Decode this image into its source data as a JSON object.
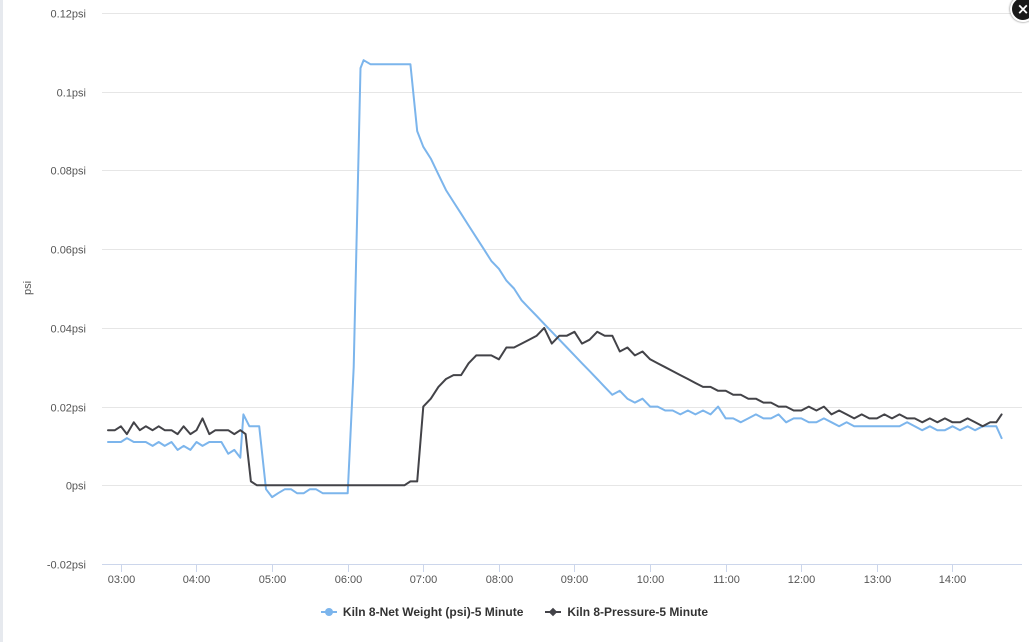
{
  "window": {
    "close_label": "×"
  },
  "colors": {
    "net_weight": "#7cb5ec",
    "pressure": "#434348",
    "grid": "#e6e6e6",
    "axis_line": "#ccd6eb"
  },
  "chart_data": {
    "type": "line",
    "title": "",
    "xlabel": "",
    "ylabel": "psi",
    "ylim": [
      -0.02,
      0.12
    ],
    "y_ticks": [
      "-0.02psi",
      "0psi",
      "0.02psi",
      "0.04psi",
      "0.06psi",
      "0.08psi",
      "0.1psi",
      "0.12psi"
    ],
    "y_tick_values": [
      -0.02,
      0,
      0.02,
      0.04,
      0.06,
      0.08,
      0.1,
      0.12
    ],
    "x_ticks": [
      "03:00",
      "04:00",
      "05:00",
      "06:00",
      "07:00",
      "08:00",
      "09:00",
      "10:00",
      "11:00",
      "12:00",
      "13:00",
      "14:00"
    ],
    "x_tick_hours": [
      3,
      4,
      5,
      6,
      7,
      8,
      9,
      10,
      11,
      12,
      13,
      14
    ],
    "xlim_hours": [
      2.75,
      14.92
    ],
    "legend_position": "bottom-center",
    "grid": true,
    "series": [
      {
        "name": "Kiln 8-Net Weight (psi)-5 Minute",
        "color": "#7cb5ec",
        "marker": "circle",
        "points": [
          [
            2.83,
            0.011
          ],
          [
            2.92,
            0.011
          ],
          [
            3.0,
            0.011
          ],
          [
            3.08,
            0.012
          ],
          [
            3.17,
            0.011
          ],
          [
            3.25,
            0.011
          ],
          [
            3.33,
            0.011
          ],
          [
            3.42,
            0.01
          ],
          [
            3.5,
            0.011
          ],
          [
            3.58,
            0.01
          ],
          [
            3.67,
            0.011
          ],
          [
            3.75,
            0.009
          ],
          [
            3.83,
            0.01
          ],
          [
            3.92,
            0.009
          ],
          [
            4.0,
            0.011
          ],
          [
            4.08,
            0.01
          ],
          [
            4.17,
            0.011
          ],
          [
            4.25,
            0.011
          ],
          [
            4.33,
            0.011
          ],
          [
            4.42,
            0.008
          ],
          [
            4.5,
            0.009
          ],
          [
            4.58,
            0.007
          ],
          [
            4.62,
            0.018
          ],
          [
            4.7,
            0.015
          ],
          [
            4.83,
            0.015
          ],
          [
            4.92,
            -0.001
          ],
          [
            5.0,
            -0.003
          ],
          [
            5.08,
            -0.002
          ],
          [
            5.17,
            -0.001
          ],
          [
            5.25,
            -0.001
          ],
          [
            5.33,
            -0.002
          ],
          [
            5.42,
            -0.002
          ],
          [
            5.5,
            -0.001
          ],
          [
            5.58,
            -0.001
          ],
          [
            5.67,
            -0.002
          ],
          [
            5.75,
            -0.002
          ],
          [
            5.83,
            -0.002
          ],
          [
            5.92,
            -0.002
          ],
          [
            6.0,
            -0.002
          ],
          [
            6.08,
            0.03
          ],
          [
            6.17,
            0.106
          ],
          [
            6.21,
            0.108
          ],
          [
            6.3,
            0.107
          ],
          [
            6.5,
            0.107
          ],
          [
            6.7,
            0.107
          ],
          [
            6.83,
            0.107
          ],
          [
            6.92,
            0.09
          ],
          [
            7.0,
            0.086
          ],
          [
            7.1,
            0.083
          ],
          [
            7.2,
            0.079
          ],
          [
            7.3,
            0.075
          ],
          [
            7.4,
            0.072
          ],
          [
            7.5,
            0.069
          ],
          [
            7.6,
            0.066
          ],
          [
            7.7,
            0.063
          ],
          [
            7.8,
            0.06
          ],
          [
            7.9,
            0.057
          ],
          [
            8.0,
            0.055
          ],
          [
            8.1,
            0.052
          ],
          [
            8.2,
            0.05
          ],
          [
            8.3,
            0.047
          ],
          [
            8.4,
            0.045
          ],
          [
            8.5,
            0.043
          ],
          [
            8.6,
            0.041
          ],
          [
            8.7,
            0.039
          ],
          [
            8.8,
            0.037
          ],
          [
            8.9,
            0.035
          ],
          [
            9.0,
            0.033
          ],
          [
            9.1,
            0.031
          ],
          [
            9.2,
            0.029
          ],
          [
            9.3,
            0.027
          ],
          [
            9.4,
            0.025
          ],
          [
            9.5,
            0.023
          ],
          [
            9.6,
            0.024
          ],
          [
            9.7,
            0.022
          ],
          [
            9.8,
            0.021
          ],
          [
            9.9,
            0.022
          ],
          [
            10.0,
            0.02
          ],
          [
            10.1,
            0.02
          ],
          [
            10.2,
            0.019
          ],
          [
            10.3,
            0.019
          ],
          [
            10.4,
            0.018
          ],
          [
            10.5,
            0.019
          ],
          [
            10.6,
            0.018
          ],
          [
            10.7,
            0.019
          ],
          [
            10.8,
            0.018
          ],
          [
            10.9,
            0.02
          ],
          [
            11.0,
            0.017
          ],
          [
            11.1,
            0.017
          ],
          [
            11.2,
            0.016
          ],
          [
            11.3,
            0.017
          ],
          [
            11.4,
            0.018
          ],
          [
            11.5,
            0.017
          ],
          [
            11.6,
            0.017
          ],
          [
            11.7,
            0.018
          ],
          [
            11.8,
            0.016
          ],
          [
            11.9,
            0.017
          ],
          [
            12.0,
            0.017
          ],
          [
            12.1,
            0.016
          ],
          [
            12.2,
            0.016
          ],
          [
            12.3,
            0.017
          ],
          [
            12.4,
            0.016
          ],
          [
            12.5,
            0.015
          ],
          [
            12.6,
            0.016
          ],
          [
            12.7,
            0.015
          ],
          [
            12.8,
            0.015
          ],
          [
            12.9,
            0.015
          ],
          [
            13.0,
            0.015
          ],
          [
            13.1,
            0.015
          ],
          [
            13.2,
            0.015
          ],
          [
            13.3,
            0.015
          ],
          [
            13.4,
            0.016
          ],
          [
            13.5,
            0.015
          ],
          [
            13.6,
            0.014
          ],
          [
            13.7,
            0.015
          ],
          [
            13.8,
            0.014
          ],
          [
            13.9,
            0.014
          ],
          [
            14.0,
            0.015
          ],
          [
            14.1,
            0.014
          ],
          [
            14.2,
            0.015
          ],
          [
            14.3,
            0.014
          ],
          [
            14.4,
            0.015
          ],
          [
            14.5,
            0.015
          ],
          [
            14.58,
            0.015
          ],
          [
            14.65,
            0.012
          ]
        ]
      },
      {
        "name": "Kiln 8-Pressure-5 Minute",
        "color": "#434348",
        "marker": "diamond",
        "points": [
          [
            2.83,
            0.014
          ],
          [
            2.92,
            0.014
          ],
          [
            3.0,
            0.015
          ],
          [
            3.08,
            0.013
          ],
          [
            3.17,
            0.016
          ],
          [
            3.25,
            0.014
          ],
          [
            3.33,
            0.015
          ],
          [
            3.42,
            0.014
          ],
          [
            3.5,
            0.015
          ],
          [
            3.58,
            0.014
          ],
          [
            3.67,
            0.014
          ],
          [
            3.75,
            0.013
          ],
          [
            3.83,
            0.015
          ],
          [
            3.92,
            0.013
          ],
          [
            4.0,
            0.014
          ],
          [
            4.08,
            0.017
          ],
          [
            4.17,
            0.013
          ],
          [
            4.25,
            0.014
          ],
          [
            4.33,
            0.014
          ],
          [
            4.42,
            0.014
          ],
          [
            4.5,
            0.013
          ],
          [
            4.58,
            0.014
          ],
          [
            4.65,
            0.013
          ],
          [
            4.72,
            0.001
          ],
          [
            4.8,
            0.0
          ],
          [
            5.0,
            0.0
          ],
          [
            5.5,
            0.0
          ],
          [
            6.0,
            0.0
          ],
          [
            6.5,
            0.0
          ],
          [
            6.75,
            0.0
          ],
          [
            6.83,
            0.001
          ],
          [
            6.92,
            0.001
          ],
          [
            7.0,
            0.02
          ],
          [
            7.1,
            0.022
          ],
          [
            7.2,
            0.025
          ],
          [
            7.3,
            0.027
          ],
          [
            7.4,
            0.028
          ],
          [
            7.5,
            0.028
          ],
          [
            7.6,
            0.031
          ],
          [
            7.7,
            0.033
          ],
          [
            7.8,
            0.033
          ],
          [
            7.9,
            0.033
          ],
          [
            8.0,
            0.032
          ],
          [
            8.1,
            0.035
          ],
          [
            8.2,
            0.035
          ],
          [
            8.3,
            0.036
          ],
          [
            8.4,
            0.037
          ],
          [
            8.5,
            0.038
          ],
          [
            8.6,
            0.04
          ],
          [
            8.7,
            0.036
          ],
          [
            8.8,
            0.038
          ],
          [
            8.9,
            0.038
          ],
          [
            9.0,
            0.039
          ],
          [
            9.1,
            0.036
          ],
          [
            9.2,
            0.037
          ],
          [
            9.3,
            0.039
          ],
          [
            9.4,
            0.038
          ],
          [
            9.5,
            0.038
          ],
          [
            9.6,
            0.034
          ],
          [
            9.7,
            0.035
          ],
          [
            9.8,
            0.033
          ],
          [
            9.9,
            0.034
          ],
          [
            10.0,
            0.032
          ],
          [
            10.1,
            0.031
          ],
          [
            10.2,
            0.03
          ],
          [
            10.3,
            0.029
          ],
          [
            10.4,
            0.028
          ],
          [
            10.5,
            0.027
          ],
          [
            10.6,
            0.026
          ],
          [
            10.7,
            0.025
          ],
          [
            10.8,
            0.025
          ],
          [
            10.9,
            0.024
          ],
          [
            11.0,
            0.024
          ],
          [
            11.1,
            0.023
          ],
          [
            11.2,
            0.023
          ],
          [
            11.3,
            0.022
          ],
          [
            11.4,
            0.022
          ],
          [
            11.5,
            0.021
          ],
          [
            11.6,
            0.021
          ],
          [
            11.7,
            0.02
          ],
          [
            11.8,
            0.02
          ],
          [
            11.9,
            0.019
          ],
          [
            12.0,
            0.019
          ],
          [
            12.1,
            0.02
          ],
          [
            12.2,
            0.019
          ],
          [
            12.3,
            0.02
          ],
          [
            12.4,
            0.018
          ],
          [
            12.5,
            0.019
          ],
          [
            12.6,
            0.018
          ],
          [
            12.7,
            0.017
          ],
          [
            12.8,
            0.018
          ],
          [
            12.9,
            0.017
          ],
          [
            13.0,
            0.017
          ],
          [
            13.1,
            0.018
          ],
          [
            13.2,
            0.017
          ],
          [
            13.3,
            0.018
          ],
          [
            13.4,
            0.017
          ],
          [
            13.5,
            0.017
          ],
          [
            13.6,
            0.016
          ],
          [
            13.7,
            0.017
          ],
          [
            13.8,
            0.016
          ],
          [
            13.9,
            0.017
          ],
          [
            14.0,
            0.016
          ],
          [
            14.1,
            0.016
          ],
          [
            14.2,
            0.017
          ],
          [
            14.3,
            0.016
          ],
          [
            14.4,
            0.015
          ],
          [
            14.5,
            0.016
          ],
          [
            14.58,
            0.016
          ],
          [
            14.65,
            0.018
          ]
        ]
      }
    ]
  }
}
